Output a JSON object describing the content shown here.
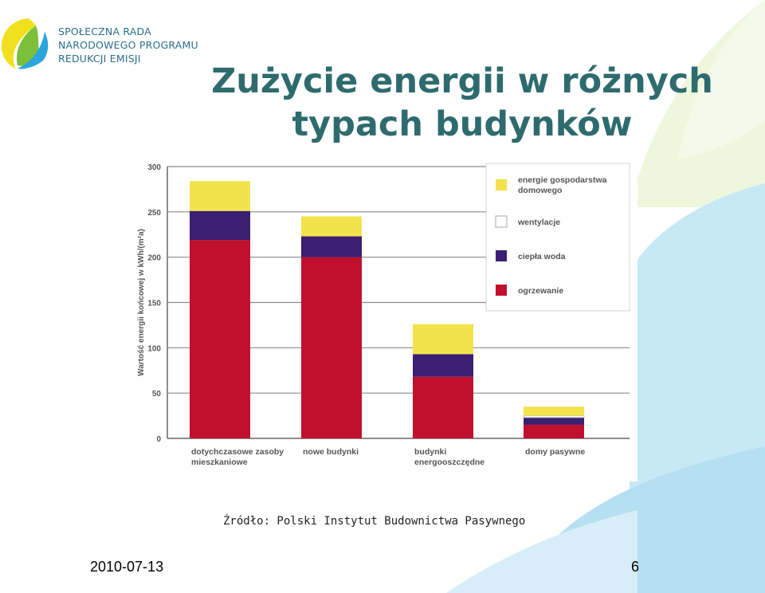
{
  "logo": {
    "lines": [
      "SPOŁECZNA RADA",
      "NARODOWEGO PROGRAMU",
      "REDUKCJI EMISJI"
    ]
  },
  "slide": {
    "title_line1": "Zużycie energii w różnych",
    "title_line2": "typach budynków",
    "source": "Źródło: Polski Instytut Budownictwa Pasywnego",
    "date": "2010-07-13",
    "page_number": "6"
  },
  "colors": {
    "title": "#2e6b6e",
    "ogrzewanie": "#c0102e",
    "ciepla_woda": "#3b1f72",
    "wentylacje": "#ffffff",
    "energie_gospodarstwa": "#f2e34c"
  },
  "chart_data": {
    "type": "bar",
    "stacked": true,
    "ylabel": "Wartość energii końcowej w kWh/(m²a)",
    "ylim": [
      0,
      300
    ],
    "yticks": [
      0,
      50,
      100,
      150,
      200,
      250,
      300
    ],
    "grid": true,
    "legend_position": "top-right",
    "categories": [
      [
        "dotychczasowe zasoby",
        "mieszkaniowe"
      ],
      [
        "nowe budynki"
      ],
      [
        "budynki",
        "energooszczędne"
      ],
      [
        "domy pasywne"
      ]
    ],
    "series": [
      {
        "name": "ogrzewanie",
        "color": "#c0102e",
        "values": [
          219,
          200,
          68,
          15
        ]
      },
      {
        "name": "ciepła woda",
        "color": "#3b1f72",
        "values": [
          32,
          23,
          25,
          8
        ]
      },
      {
        "name": "wentylacje",
        "color": "#ffffff",
        "values": [
          0,
          0,
          0,
          2
        ]
      },
      {
        "name": "energie gospodarstwa domowego",
        "color": "#f2e34c",
        "values": [
          33,
          22,
          33,
          10
        ]
      }
    ],
    "legend": [
      {
        "label_lines": [
          "energie gospodarstwa",
          "domowego"
        ],
        "color": "#f2e34c"
      },
      {
        "label_lines": [
          "wentylacje"
        ],
        "color": "#ffffff"
      },
      {
        "label_lines": [
          "ciepła woda"
        ],
        "color": "#3b1f72"
      },
      {
        "label_lines": [
          "ogrzewanie"
        ],
        "color": "#c0102e"
      }
    ]
  }
}
